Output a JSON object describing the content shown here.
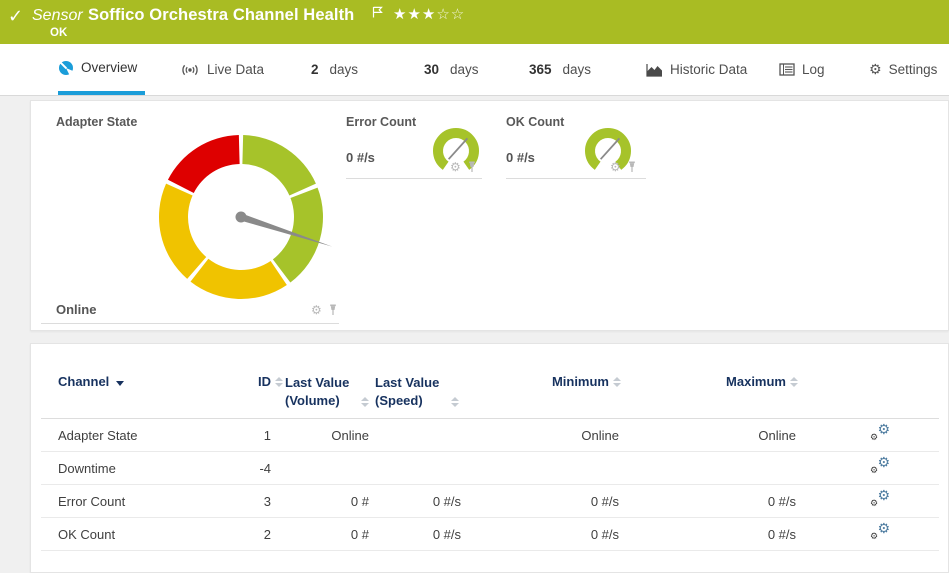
{
  "titlebar": {
    "kind": "Sensor",
    "title": "Soffico Orchestra Channel Health",
    "status": "OK",
    "stars_filled": 3,
    "stars_total": 5
  },
  "tabs": {
    "overview": "Overview",
    "live_data": "Live Data",
    "d2_num": "2",
    "d2_label": "days",
    "d30_num": "30",
    "d30_label": "days",
    "d365_num": "365",
    "d365_label": "days",
    "historic": "Historic Data",
    "log": "Log",
    "settings": "Settings"
  },
  "overview": {
    "adapter_gauge": {
      "title": "Adapter State",
      "value": "Online",
      "needle_angle": 108,
      "outer_radius": 82,
      "inner_radius": 53,
      "segments": [
        {
          "start": 1.5,
          "end": 66,
          "color": "#A6C32A"
        },
        {
          "start": 69,
          "end": 143,
          "color": "#A6C32A"
        },
        {
          "start": 146,
          "end": 218,
          "color": "#F0C300"
        },
        {
          "start": 221,
          "end": 294,
          "color": "#F0C300"
        },
        {
          "start": 297,
          "end": 358.5,
          "color": "#DE0000"
        }
      ]
    },
    "mini_gauges": [
      {
        "title": "Error Count",
        "value": "0 #/s",
        "arc_start": 215,
        "arc_end": 505,
        "needle_angle": 42,
        "color": "#A6C32A"
      },
      {
        "title": "OK Count",
        "value": "0 #/s",
        "arc_start": 215,
        "arc_end": 505,
        "needle_angle": 42,
        "color": "#A6C32A"
      }
    ]
  },
  "table": {
    "headers": {
      "channel": "Channel",
      "id": "ID",
      "last_volume": "Last Value (Volume)",
      "last_speed": "Last Value (Speed)",
      "min": "Minimum",
      "max": "Maximum"
    },
    "rows": [
      {
        "channel": "Adapter State",
        "id": "1",
        "last_volume": "Online",
        "last_speed": "",
        "min": "Online",
        "max": "Online"
      },
      {
        "channel": "Downtime",
        "id": "-4",
        "last_volume": "",
        "last_speed": "",
        "min": "",
        "max": ""
      },
      {
        "channel": "Error Count",
        "id": "3",
        "last_volume": "0 #",
        "last_speed": "0 #/s",
        "min": "0 #/s",
        "max": "0 #/s"
      },
      {
        "channel": "OK Count",
        "id": "2",
        "last_volume": "0 #",
        "last_speed": "0 #/s",
        "min": "0 #/s",
        "max": "0 #/s"
      }
    ]
  },
  "colors": {
    "banner_green": "#A9BC23",
    "accent_blue": "#1B9DD9",
    "gauge_green": "#A6C32A",
    "gauge_yellow": "#F0C300",
    "gauge_red": "#DE0000",
    "needle_gray": "#8A8A8A",
    "header_navy": "#17325F"
  }
}
